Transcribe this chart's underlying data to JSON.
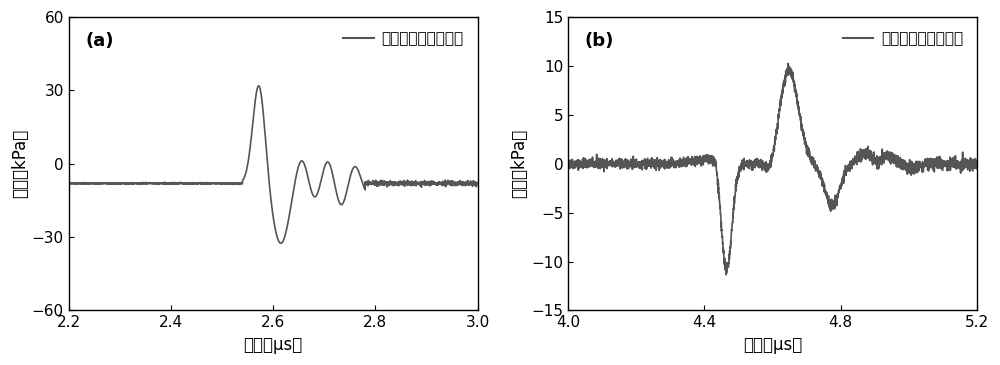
{
  "panel_a": {
    "label": "(a)",
    "legend": "探头发射的超声信号",
    "xlim": [
      2.2,
      3.0
    ],
    "ylim": [
      -60,
      60
    ],
    "xticks": [
      2.2,
      2.4,
      2.6,
      2.8,
      3.0
    ],
    "yticks": [
      -60,
      -30,
      0,
      30,
      60
    ],
    "xlabel": "时间（μs）",
    "ylabel": "声压（kPa）",
    "line_color": "#555555",
    "line_width": 1.2
  },
  "panel_b": {
    "label": "(b)",
    "legend": "探头接收的超声信号",
    "xlim": [
      4.0,
      5.2
    ],
    "ylim": [
      -15,
      15
    ],
    "xticks": [
      4.0,
      4.4,
      4.8,
      5.2
    ],
    "yticks": [
      -15,
      -10,
      -5,
      0,
      5,
      10,
      15
    ],
    "xlabel": "时间（μs）",
    "ylabel": "声压（kPa）",
    "line_color": "#555555",
    "line_width": 1.2
  },
  "fig_bg": "#ffffff",
  "font_size_label": 12,
  "font_size_tick": 11,
  "font_size_legend": 11,
  "font_size_panel": 13
}
